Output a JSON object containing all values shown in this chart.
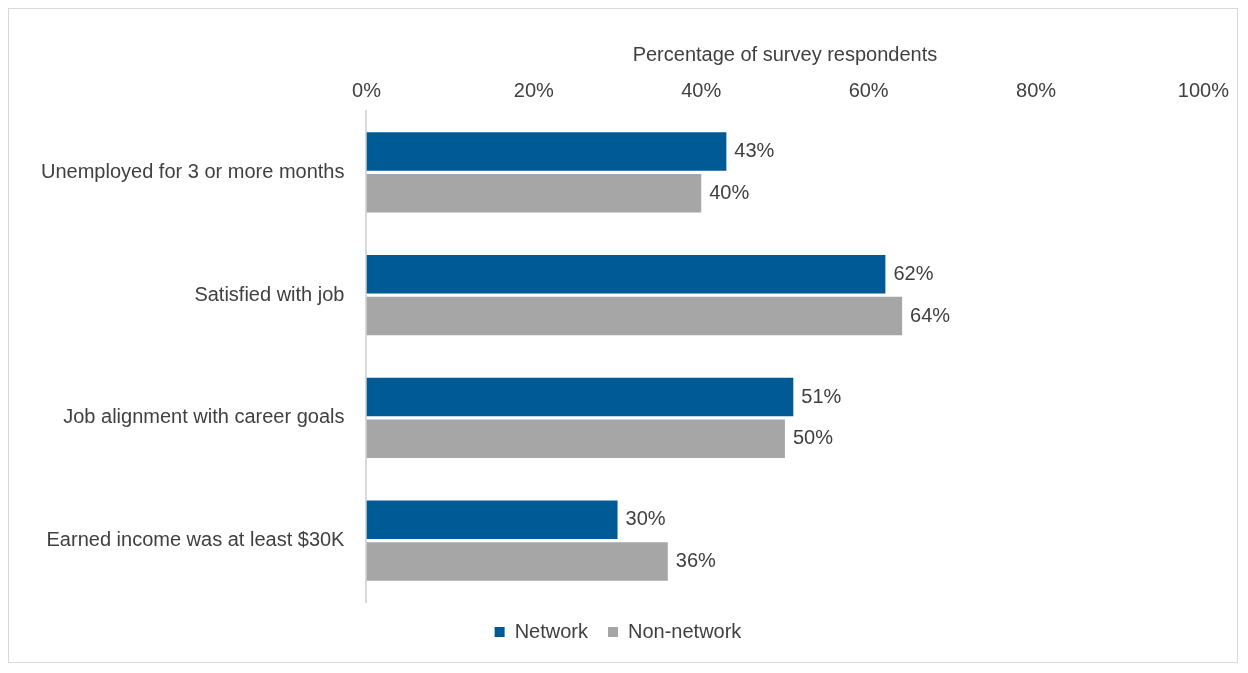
{
  "chart_data": {
    "type": "bar",
    "orientation": "horizontal",
    "xlabel": "Percentage of survey respondents",
    "categories": [
      "Unemployed for 3 or more months",
      "Satisfied with job",
      "Job alignment with career goals",
      "Earned income was at least $30K"
    ],
    "series": [
      {
        "name": "Network",
        "color": "#005a96",
        "values": [
          43,
          62,
          51,
          30
        ],
        "value_labels": [
          "43%",
          "62%",
          "51%",
          "30%"
        ]
      },
      {
        "name": "Non-network",
        "color": "#a6a6a6",
        "values": [
          40,
          64,
          50,
          36
        ],
        "value_labels": [
          "40%",
          "64%",
          "50%",
          "36%"
        ]
      }
    ],
    "xlim": [
      0,
      100
    ],
    "xticks": [
      {
        "value": 0,
        "label": "0%"
      },
      {
        "value": 20,
        "label": "20%"
      },
      {
        "value": 40,
        "label": "40%"
      },
      {
        "value": 60,
        "label": "60%"
      },
      {
        "value": 80,
        "label": "80%"
      },
      {
        "value": 100,
        "label": "100%"
      }
    ],
    "grid": false,
    "legend": "bottom"
  }
}
